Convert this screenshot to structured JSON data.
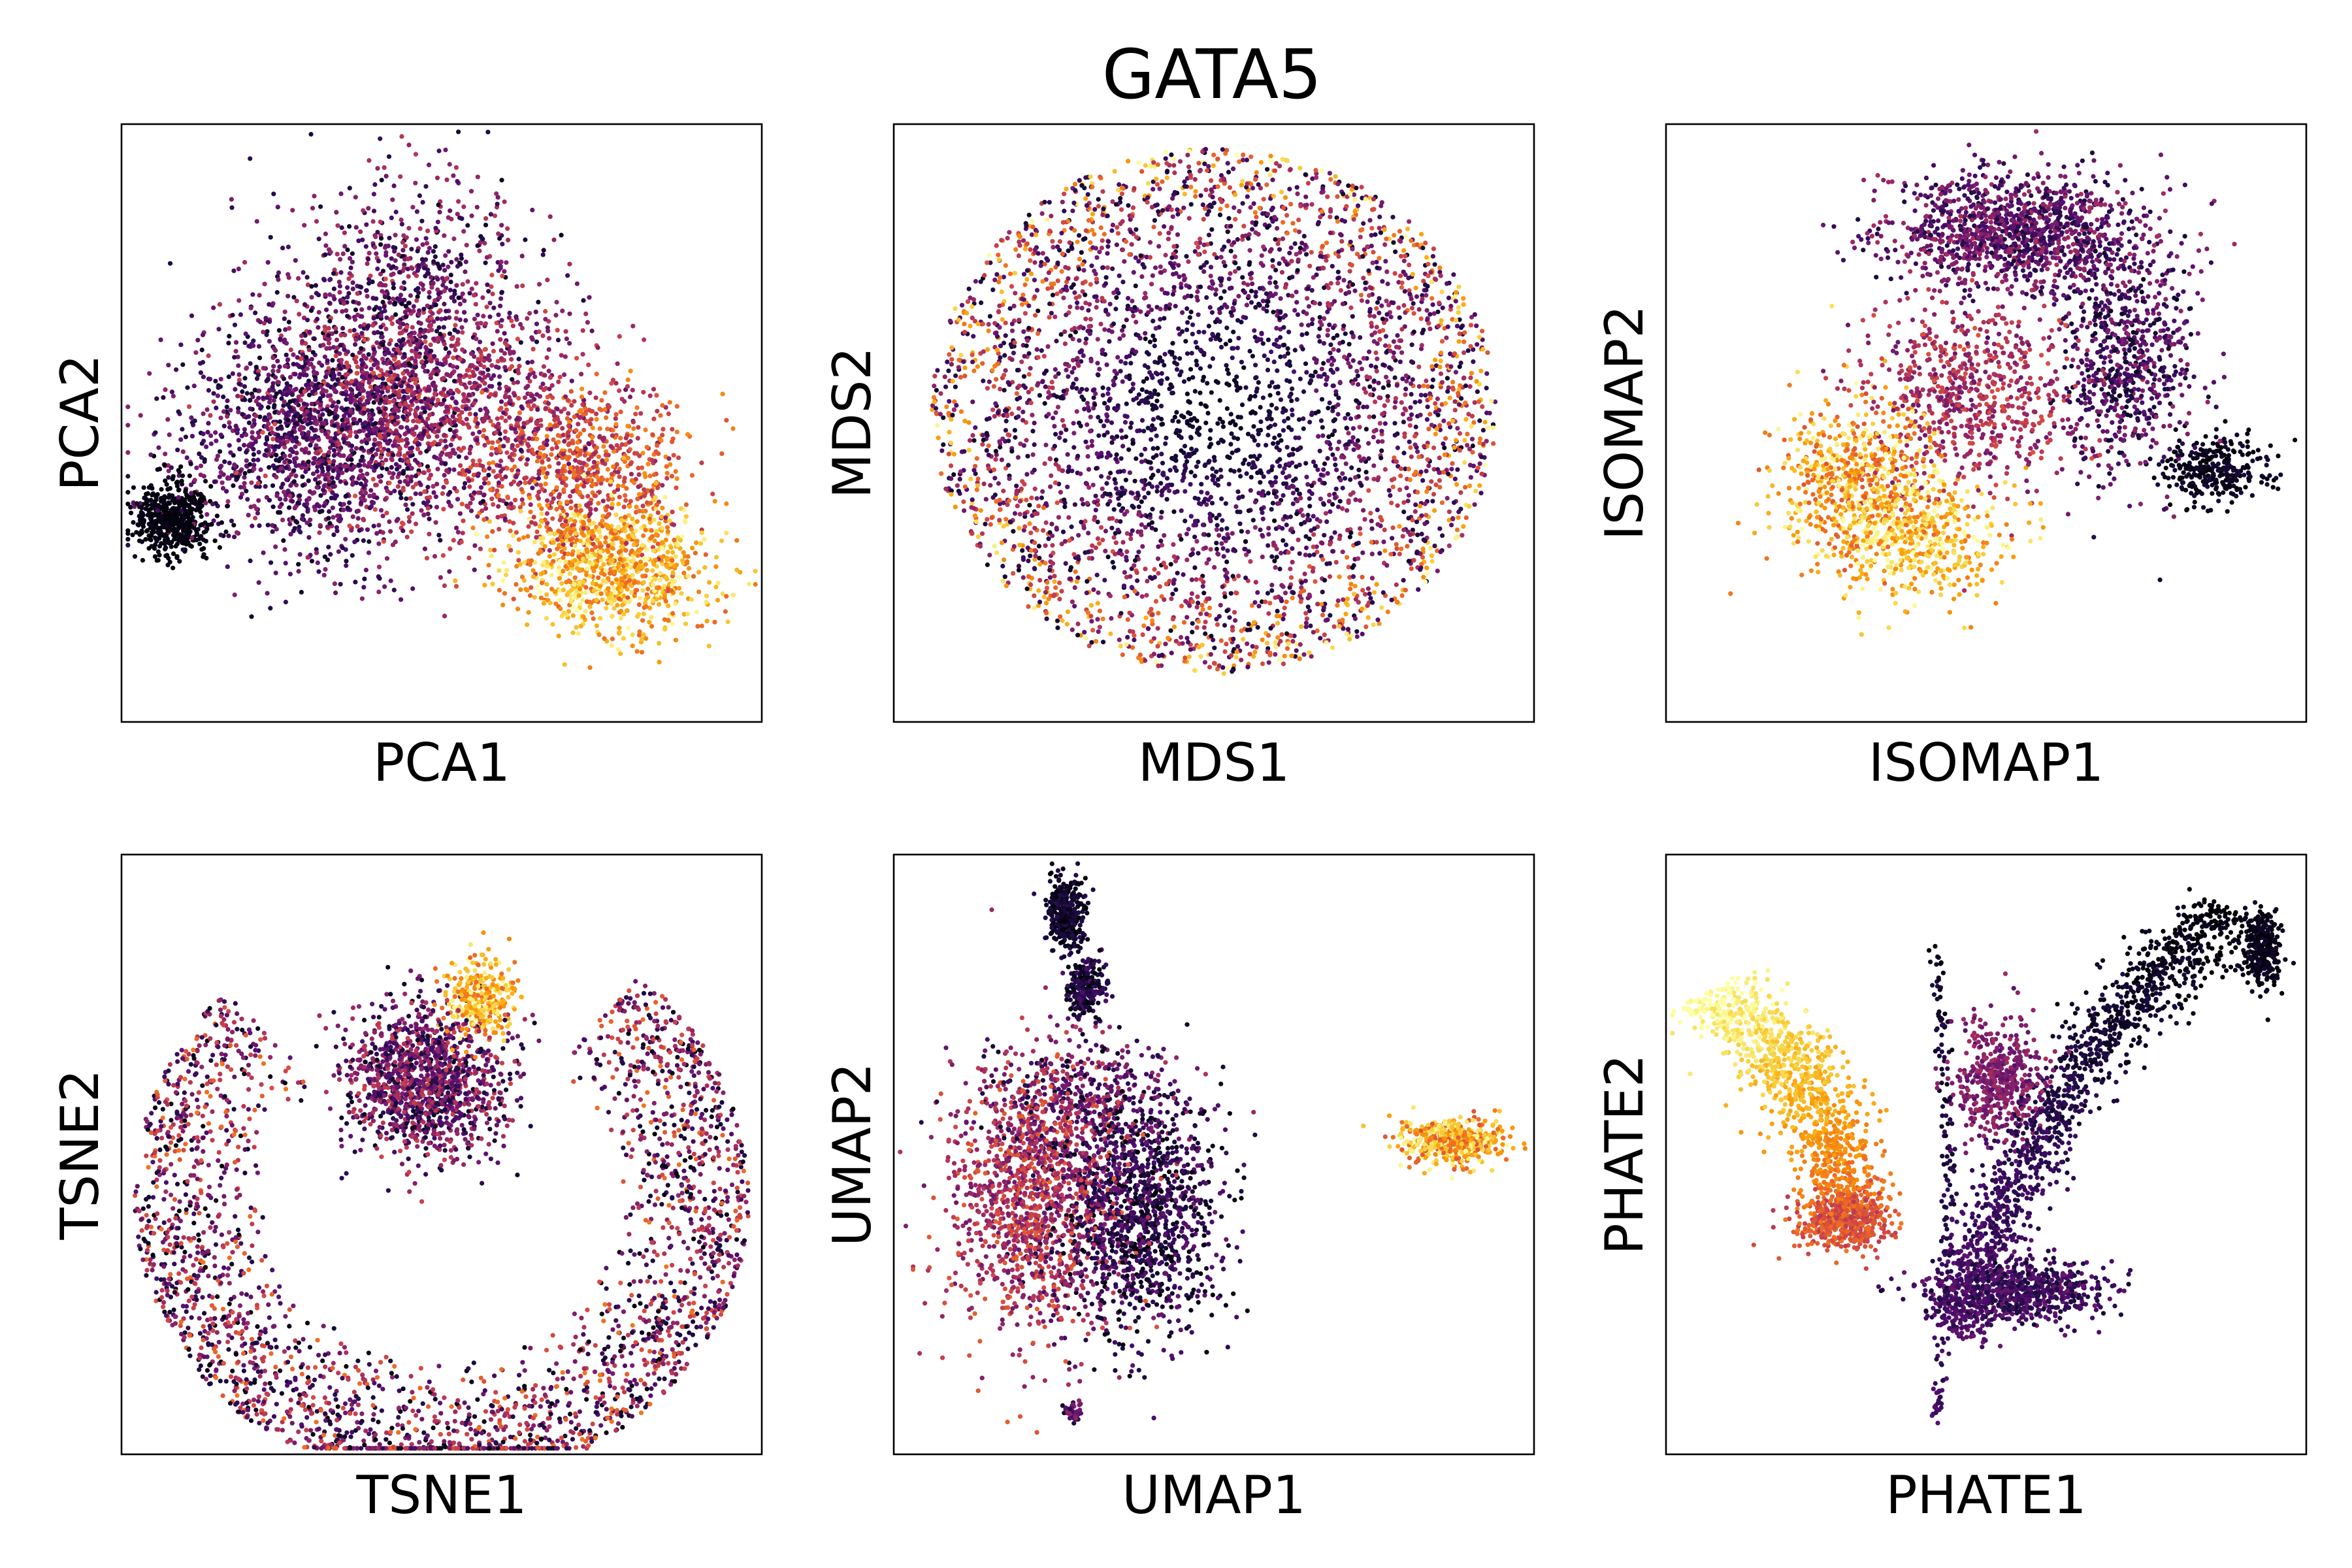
{
  "figure": {
    "title": "GATA5",
    "colormap": "inferno",
    "colormap_stops": [
      "#000004",
      "#1b0c41",
      "#4a0c6b",
      "#781c6d",
      "#a52c60",
      "#cf4446",
      "#ed6925",
      "#fb9b06",
      "#f7d13d",
      "#fcffa4"
    ]
  },
  "chart_data": [
    {
      "type": "scatter",
      "name": "pca",
      "xlabel": "PCA1",
      "ylabel": "PCA2",
      "ticks": false,
      "grid": false,
      "clusters": [
        {
          "shape": "blob",
          "cx": 0.08,
          "cy": 0.34,
          "rx": 0.06,
          "ry": 0.06,
          "n": 500,
          "color": [
            0.0,
            0.05
          ]
        },
        {
          "shape": "blob",
          "cx": 0.3,
          "cy": 0.48,
          "rx": 0.22,
          "ry": 0.2,
          "n": 1500,
          "color": [
            0.05,
            0.4
          ]
        },
        {
          "shape": "blob",
          "cx": 0.48,
          "cy": 0.52,
          "rx": 0.24,
          "ry": 0.2,
          "n": 1300,
          "color": [
            0.25,
            0.6
          ]
        },
        {
          "shape": "blob",
          "cx": 0.45,
          "cy": 0.72,
          "rx": 0.2,
          "ry": 0.22,
          "n": 700,
          "color": [
            0.05,
            0.5
          ]
        },
        {
          "shape": "blob",
          "cx": 0.72,
          "cy": 0.42,
          "rx": 0.16,
          "ry": 0.14,
          "n": 700,
          "color": [
            0.4,
            0.75
          ]
        },
        {
          "shape": "blob",
          "cx": 0.77,
          "cy": 0.26,
          "rx": 0.15,
          "ry": 0.11,
          "n": 900,
          "color": [
            0.65,
            1.0
          ]
        }
      ]
    },
    {
      "type": "scatter",
      "name": "mds",
      "xlabel": "MDS1",
      "ylabel": "MDS2",
      "ticks": false,
      "grid": false,
      "clusters": [
        {
          "shape": "radial",
          "cx": 0.5,
          "cy": 0.52,
          "r": 0.44,
          "n": 4000,
          "color_center": 0.05,
          "color_edge": 0.9
        }
      ]
    },
    {
      "type": "scatter",
      "name": "isomap",
      "xlabel": "ISOMAP1",
      "ylabel": "ISOMAP2",
      "ticks": false,
      "grid": false,
      "clusters": [
        {
          "shape": "blob",
          "cx": 0.55,
          "cy": 0.82,
          "rx": 0.2,
          "ry": 0.1,
          "n": 1300,
          "color": [
            0.1,
            0.45
          ]
        },
        {
          "shape": "blob",
          "cx": 0.72,
          "cy": 0.6,
          "rx": 0.1,
          "ry": 0.2,
          "n": 700,
          "color": [
            0.05,
            0.4
          ]
        },
        {
          "shape": "blob",
          "cx": 0.86,
          "cy": 0.42,
          "rx": 0.08,
          "ry": 0.06,
          "n": 300,
          "color": [
            0.0,
            0.1
          ]
        },
        {
          "shape": "blob",
          "cx": 0.48,
          "cy": 0.55,
          "rx": 0.16,
          "ry": 0.16,
          "n": 700,
          "color": [
            0.3,
            0.6
          ]
        },
        {
          "shape": "blob",
          "cx": 0.3,
          "cy": 0.4,
          "rx": 0.12,
          "ry": 0.14,
          "n": 700,
          "color": [
            0.6,
            1.0
          ]
        },
        {
          "shape": "blob",
          "cx": 0.4,
          "cy": 0.3,
          "rx": 0.13,
          "ry": 0.1,
          "n": 400,
          "color": [
            0.7,
            1.0
          ]
        }
      ]
    },
    {
      "type": "scatter",
      "name": "tsne",
      "xlabel": "TSNE1",
      "ylabel": "TSNE2",
      "ticks": false,
      "grid": false,
      "clusters": [
        {
          "shape": "ring",
          "cx": 0.5,
          "cy": 0.43,
          "r_inner": 0.27,
          "r_outer": 0.48,
          "gap_angle": [
            50,
            135
          ],
          "n": 2600,
          "color": [
            0.0,
            0.7
          ]
        },
        {
          "shape": "blob",
          "cx": 0.47,
          "cy": 0.62,
          "rx": 0.12,
          "ry": 0.12,
          "n": 1300,
          "color": [
            0.05,
            0.55
          ]
        },
        {
          "shape": "blob",
          "cx": 0.56,
          "cy": 0.76,
          "rx": 0.06,
          "ry": 0.07,
          "n": 300,
          "color": [
            0.65,
            1.0
          ]
        }
      ]
    },
    {
      "type": "scatter",
      "name": "umap",
      "xlabel": "UMAP1",
      "ylabel": "UMAP2",
      "ticks": false,
      "grid": false,
      "clusters": [
        {
          "shape": "blob",
          "cx": 0.22,
          "cy": 0.43,
          "rx": 0.13,
          "ry": 0.22,
          "n": 1300,
          "color": [
            0.3,
            0.65
          ]
        },
        {
          "shape": "blob",
          "cx": 0.38,
          "cy": 0.4,
          "rx": 0.13,
          "ry": 0.2,
          "n": 1300,
          "color": [
            0.0,
            0.3
          ]
        },
        {
          "shape": "blob",
          "cx": 0.3,
          "cy": 0.6,
          "rx": 0.16,
          "ry": 0.1,
          "n": 400,
          "color": [
            0.05,
            0.5
          ]
        },
        {
          "shape": "blob",
          "cx": 0.27,
          "cy": 0.9,
          "rx": 0.03,
          "ry": 0.06,
          "n": 350,
          "color": [
            0.0,
            0.15
          ]
        },
        {
          "shape": "blob",
          "cx": 0.3,
          "cy": 0.78,
          "rx": 0.03,
          "ry": 0.05,
          "n": 250,
          "color": [
            0.0,
            0.25
          ]
        },
        {
          "shape": "blob",
          "cx": 0.87,
          "cy": 0.52,
          "rx": 0.08,
          "ry": 0.04,
          "n": 500,
          "color": [
            0.6,
            1.0
          ]
        },
        {
          "shape": "blob",
          "cx": 0.28,
          "cy": 0.07,
          "rx": 0.015,
          "ry": 0.015,
          "n": 40,
          "color": [
            0.1,
            0.4
          ]
        }
      ]
    },
    {
      "type": "scatter",
      "name": "phate",
      "xlabel": "PHATE1",
      "ylabel": "PHATE2",
      "ticks": false,
      "grid": false,
      "clusters": [
        {
          "shape": "curve",
          "x0": 0.06,
          "y0": 0.77,
          "x1": 0.28,
          "y1": 0.38,
          "bend": 0.06,
          "width": 0.035,
          "n": 1100,
          "color": [
            1.0,
            0.65
          ]
        },
        {
          "shape": "blob",
          "cx": 0.28,
          "cy": 0.39,
          "rx": 0.07,
          "ry": 0.045,
          "n": 500,
          "color": [
            0.5,
            0.7
          ]
        },
        {
          "shape": "curve",
          "x0": 0.88,
          "y0": 0.91,
          "x1": 0.45,
          "y1": 0.2,
          "bend": -0.06,
          "width": 0.03,
          "n": 1400,
          "color": [
            0.0,
            0.25
          ]
        },
        {
          "shape": "blob",
          "cx": 0.55,
          "cy": 0.27,
          "rx": 0.13,
          "ry": 0.05,
          "n": 700,
          "color": [
            0.08,
            0.3
          ]
        },
        {
          "shape": "blob",
          "cx": 0.52,
          "cy": 0.62,
          "rx": 0.07,
          "ry": 0.1,
          "n": 500,
          "color": [
            0.25,
            0.45
          ]
        },
        {
          "shape": "blob",
          "cx": 0.93,
          "cy": 0.84,
          "rx": 0.03,
          "ry": 0.07,
          "n": 300,
          "color": [
            0.0,
            0.08
          ]
        },
        {
          "shape": "curve",
          "x0": 0.42,
          "y0": 0.85,
          "x1": 0.42,
          "y1": 0.05,
          "bend": 0.02,
          "width": 0.006,
          "n": 180,
          "color": [
            0.05,
            0.2
          ]
        }
      ]
    }
  ]
}
